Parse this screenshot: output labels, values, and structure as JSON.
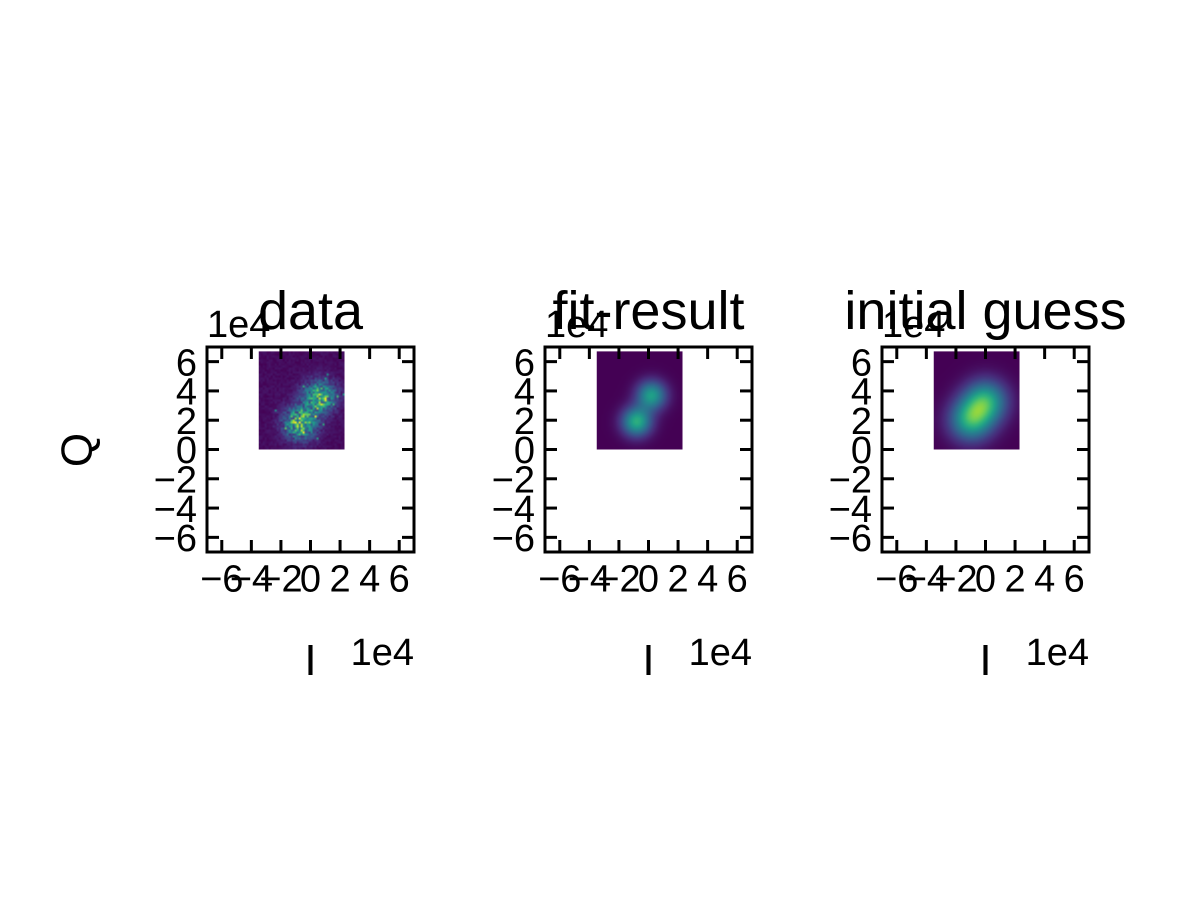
{
  "chart_data": {
    "type": "heatmap",
    "shared_ylabel": "Q",
    "panels": [
      {
        "title": "data",
        "xlabel": "I",
        "x_offset_text": "1e4",
        "y_offset_text": "1e4",
        "xlim": [
          -7,
          7
        ],
        "ylim": [
          -7,
          7
        ],
        "x_ticks": [
          -6,
          -4,
          -2,
          0,
          2,
          4,
          6
        ],
        "y_ticks": [
          -6,
          -4,
          -2,
          0,
          2,
          4,
          6
        ],
        "x_tick_labels": [
          "−6",
          "−4",
          "−2",
          "0",
          "2",
          "4",
          "6"
        ],
        "y_tick_labels": [
          "−6",
          "−4",
          "−2",
          "0",
          "2",
          "4",
          "6"
        ],
        "image_extent": [
          -3.5,
          2.3,
          0,
          6.7
        ],
        "noisy": true,
        "blobs": [
          {
            "x": -0.7,
            "y": 1.8,
            "sigma": 0.75,
            "amp": 1.0
          },
          {
            "x": 0.6,
            "y": 3.6,
            "sigma": 0.75,
            "amp": 0.9
          }
        ]
      },
      {
        "title": "fit-result",
        "xlabel": "I",
        "x_offset_text": "1e4",
        "y_offset_text": "1e4",
        "xlim": [
          -7,
          7
        ],
        "ylim": [
          -7,
          7
        ],
        "x_ticks": [
          -6,
          -4,
          -2,
          0,
          2,
          4,
          6
        ],
        "y_ticks": [
          -6,
          -4,
          -2,
          0,
          2,
          4,
          6
        ],
        "x_tick_labels": [
          "−6",
          "−4",
          "−2",
          "0",
          "2",
          "4",
          "6"
        ],
        "y_tick_labels": [
          "−6",
          "−4",
          "−2",
          "0",
          "2",
          "4",
          "6"
        ],
        "image_extent": [
          -3.5,
          2.3,
          0,
          6.7
        ],
        "noisy": false,
        "blobs": [
          {
            "x": -0.8,
            "y": 1.9,
            "sigma": 0.7,
            "amp": 1.0
          },
          {
            "x": 0.2,
            "y": 3.7,
            "sigma": 0.7,
            "amp": 0.9
          }
        ]
      },
      {
        "title": "initial guess",
        "xlabel": "I",
        "x_offset_text": "1e4",
        "y_offset_text": "1e4",
        "xlim": [
          -7,
          7
        ],
        "ylim": [
          -7,
          7
        ],
        "x_ticks": [
          -6,
          -4,
          -2,
          0,
          2,
          4,
          6
        ],
        "y_ticks": [
          -6,
          -4,
          -2,
          0,
          2,
          4,
          6
        ],
        "x_tick_labels": [
          "−6",
          "−4",
          "−2",
          "0",
          "2",
          "4",
          "6"
        ],
        "y_tick_labels": [
          "−6",
          "−4",
          "−2",
          "0",
          "2",
          "4",
          "6"
        ],
        "image_extent": [
          -3.5,
          2.3,
          0,
          6.7
        ],
        "noisy": false,
        "blobs": [
          {
            "x": -1.0,
            "y": 2.0,
            "sigma": 1.0,
            "amp": 0.95
          },
          {
            "x": 0.0,
            "y": 3.3,
            "sigma": 1.0,
            "amp": 0.95
          }
        ]
      }
    ],
    "colormap": "viridis",
    "colors": {
      "viridis": [
        "#440154",
        "#482878",
        "#3e4a89",
        "#31688e",
        "#26828e",
        "#1f9e89",
        "#35b779",
        "#6ece58",
        "#b5de2b",
        "#fde725"
      ],
      "axis": "#000000"
    }
  }
}
